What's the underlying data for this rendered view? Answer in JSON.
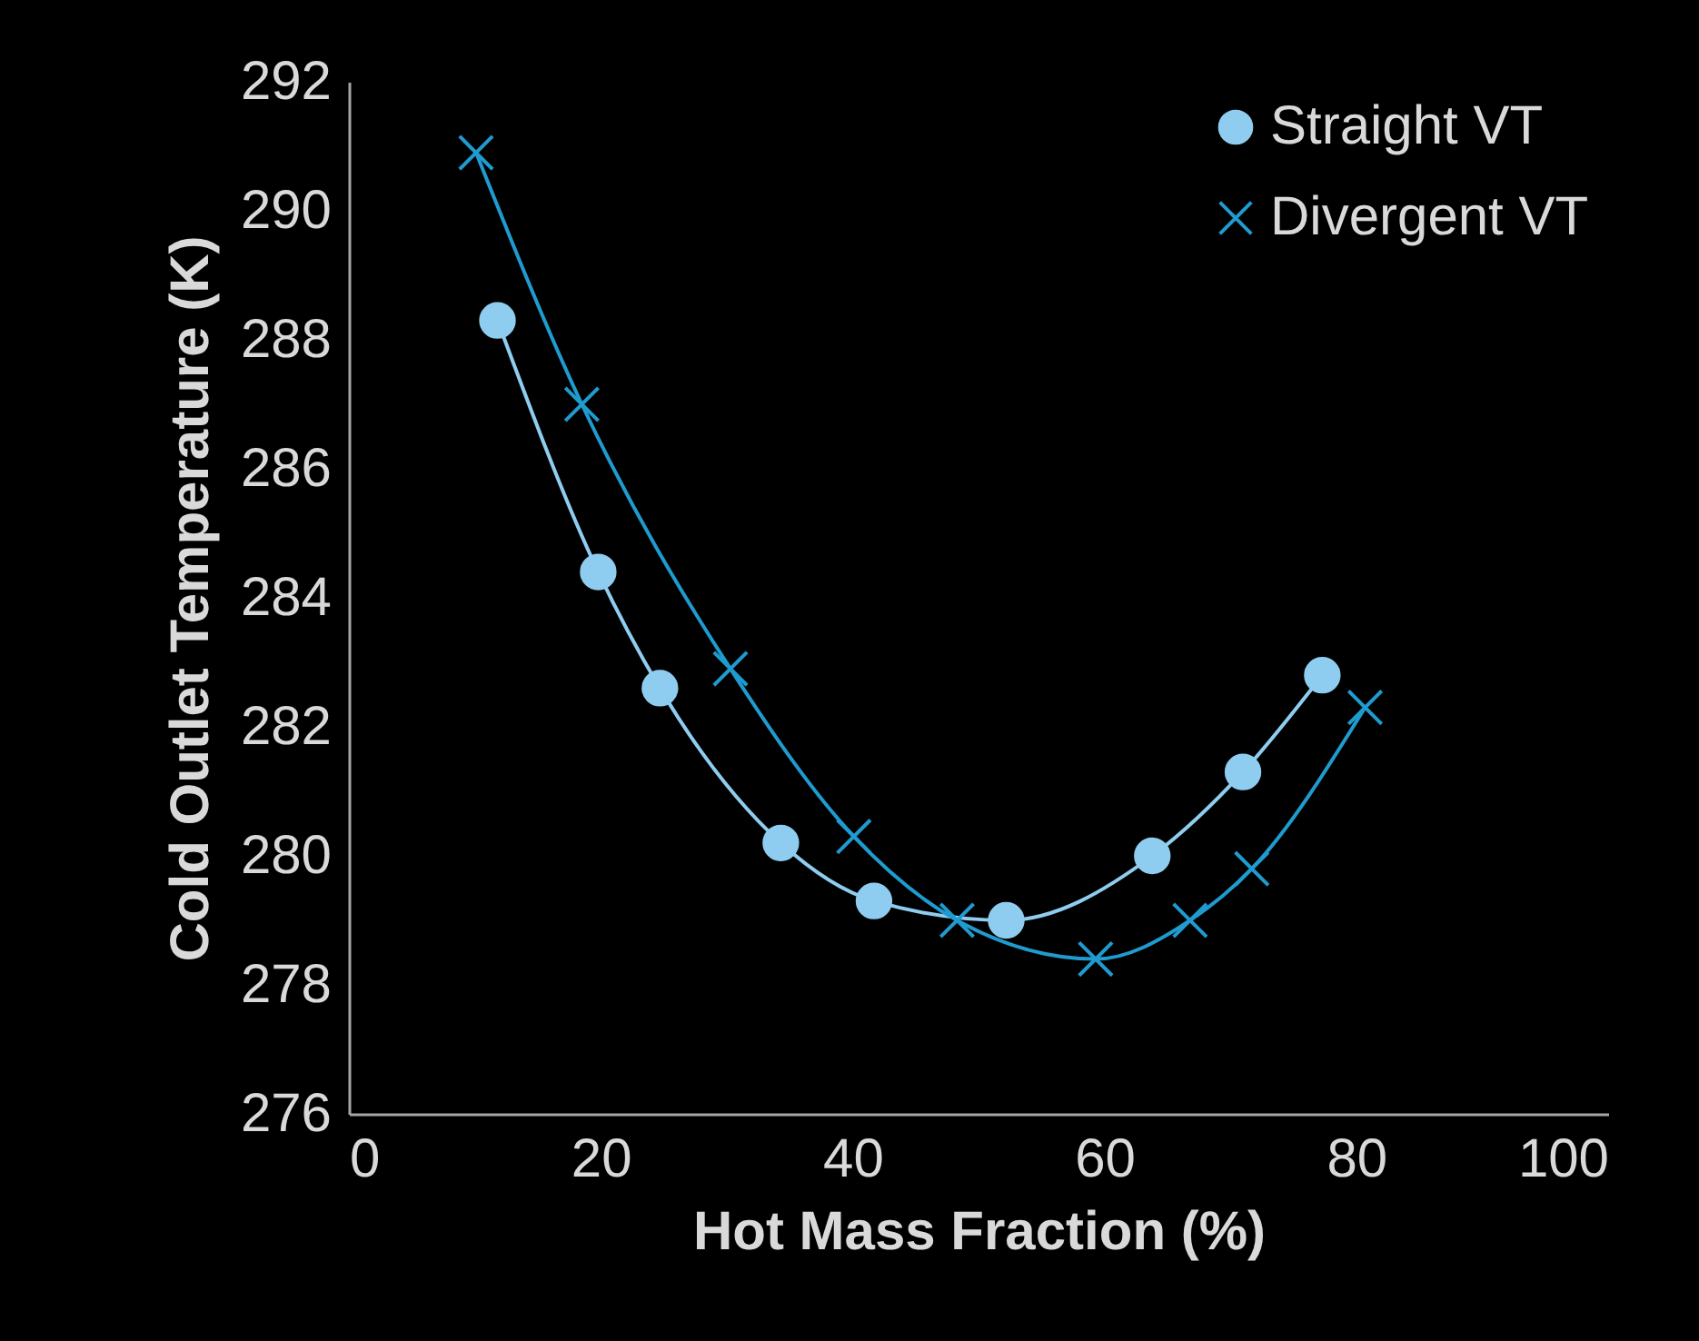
{
  "chart_data": {
    "type": "line",
    "xlabel": "Hot Mass Fraction (%)",
    "ylabel": "Cold Outlet Temperature (K)",
    "xlim": [
      0,
      100
    ],
    "xticks": [
      0,
      20,
      40,
      60,
      80,
      100
    ],
    "ylim": [
      276,
      292
    ],
    "yticks": [
      276,
      278,
      280,
      282,
      284,
      286,
      288,
      290,
      292
    ],
    "grid": false,
    "legend": "top right",
    "line_style": "solid",
    "series": [
      {
        "name": "Straight VT",
        "color": "#8fcdf0",
        "marker": "circle",
        "x": [
          11.8,
          19.8,
          24.7,
          34.3,
          41.7,
          52.2,
          63.8,
          71.0,
          77.3
        ],
        "values": [
          288.3,
          284.4,
          282.6,
          280.2,
          279.3,
          279.0,
          280.0,
          281.3,
          282.8
        ]
      },
      {
        "name": "Divergent VT",
        "color": "#1f9bcf",
        "marker": "cross",
        "x": [
          10.1,
          18.5,
          30.3,
          40.1,
          48.3,
          59.3,
          66.8,
          71.7,
          80.7
        ],
        "values": [
          290.9,
          287.0,
          282.9,
          280.3,
          279.0,
          278.4,
          279.0,
          279.8,
          282.3
        ]
      }
    ]
  }
}
